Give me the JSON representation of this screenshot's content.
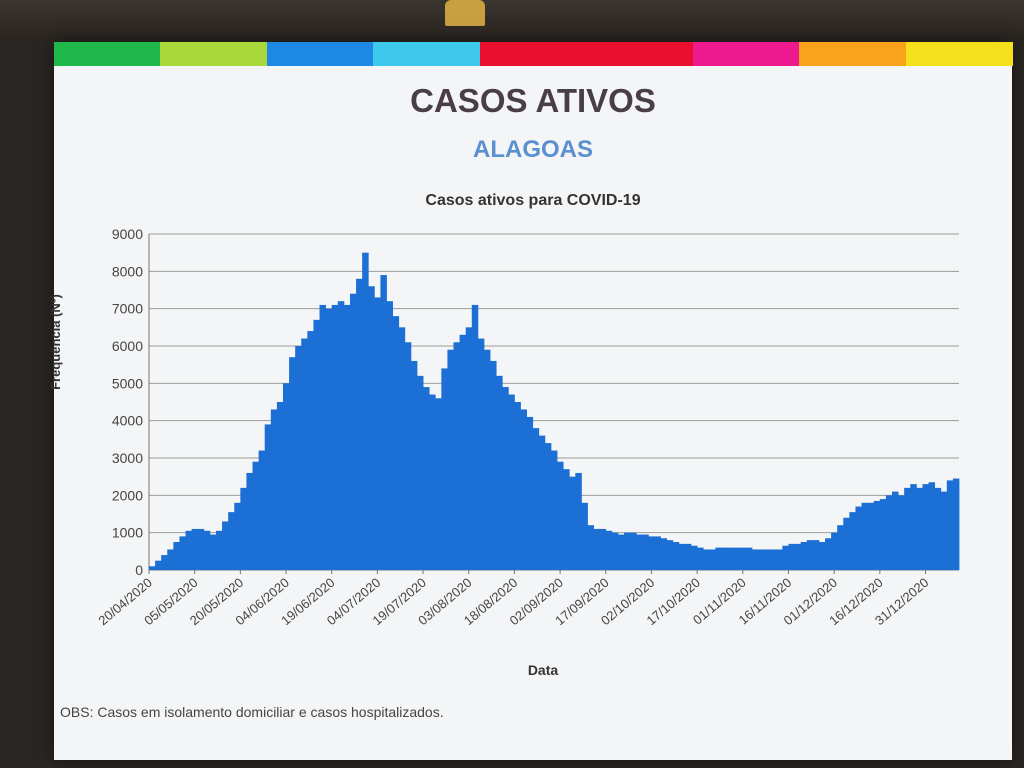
{
  "slide": {
    "title": "CASOS ATIVOS",
    "subtitle": "ALAGOAS",
    "note": "OBS: Casos em isolamento domiciliar e casos hospitalizados.",
    "stripe_colors": [
      "#1fb84a",
      "#a8d83a",
      "#1e88e5",
      "#3ec8ec",
      "#e8102e",
      "#e8102e",
      "#ec1a8e",
      "#f9a31a",
      "#f6df1b"
    ]
  },
  "chart_data": {
    "type": "bar",
    "title": "Casos ativos para COVID-19",
    "xlabel": "Data",
    "ylabel": "Frequência (Nº)",
    "ylim": [
      0,
      9000
    ],
    "yticks": [
      0,
      1000,
      2000,
      3000,
      4000,
      5000,
      6000,
      7000,
      8000,
      9000
    ],
    "xtick_labels": [
      "20/04/2020",
      "05/05/2020",
      "20/05/2020",
      "04/06/2020",
      "19/06/2020",
      "04/07/2020",
      "19/07/2020",
      "03/08/2020",
      "18/08/2020",
      "02/09/2020",
      "17/09/2020",
      "02/10/2020",
      "17/10/2020",
      "01/11/2020",
      "16/11/2020",
      "01/12/2020",
      "16/12/2020",
      "31/12/2020"
    ],
    "color": "#1c6fd4",
    "grid": true,
    "series": [
      {
        "values": [
          100,
          250,
          400,
          550,
          750,
          900,
          1050,
          1100,
          1100,
          1050,
          950,
          1050,
          1300,
          1550,
          1800,
          2200,
          2600,
          2900,
          3200,
          3900,
          4300,
          4500,
          5000,
          5700,
          6000,
          6200,
          6400,
          6700,
          7100,
          7000,
          7100,
          7200,
          7100,
          7400,
          7800,
          8500,
          7600,
          7300,
          7900,
          7200,
          6800,
          6500,
          6100,
          5600,
          5200,
          4900,
          4700,
          4600,
          5400,
          5900,
          6100,
          6300,
          6500,
          7100,
          6200,
          5900,
          5600,
          5200,
          4900,
          4700,
          4500,
          4300,
          4100,
          3800,
          3600,
          3400,
          3200,
          2900,
          2700,
          2500,
          2600,
          1800,
          1200,
          1100,
          1100,
          1050,
          1000,
          950,
          1000,
          1000,
          950,
          950,
          900,
          900,
          850,
          800,
          750,
          700,
          700,
          650,
          600,
          550,
          550,
          600,
          600,
          600,
          600,
          600,
          600,
          550,
          550,
          550,
          550,
          550,
          650,
          700,
          700,
          750,
          800,
          800,
          750,
          850,
          1000,
          1200,
          1400,
          1550,
          1700,
          1800,
          1800,
          1850,
          1900,
          2000,
          2100,
          2000,
          2200,
          2300,
          2200,
          2300,
          2350,
          2200,
          2100,
          2400,
          2450
        ],
        "x_start": "20/04/2020",
        "x_end": "13/01/2021",
        "sampling_days": 2
      }
    ]
  }
}
